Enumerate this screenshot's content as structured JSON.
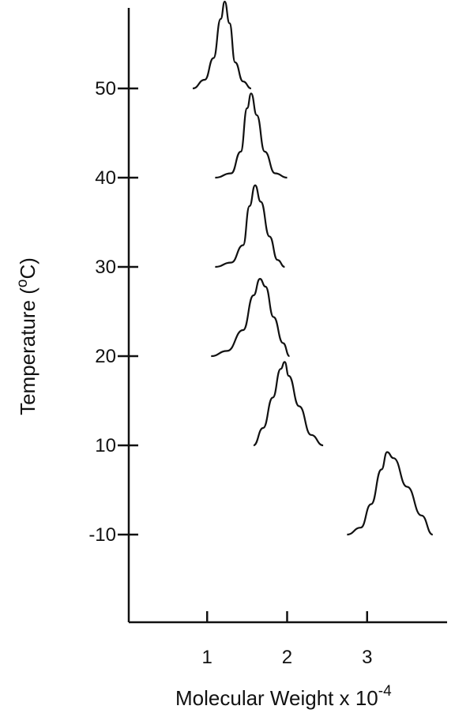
{
  "chart_data": {
    "type": "line",
    "title": "",
    "xlabel_text": "Molecular Weight x 10",
    "xlabel_exponent": "-4",
    "ylabel_pre": "Temperature (",
    "ylabel_sup": "o",
    "ylabel_post": "C)",
    "xlim": [
      0.02,
      4.0
    ],
    "x_ticks": [
      1,
      2,
      3
    ],
    "x_tick_labels": [
      "1",
      "2",
      "3"
    ],
    "y_ticks": [
      50,
      40,
      30,
      20,
      10,
      -10
    ],
    "y_tick_labels": [
      "50",
      "40",
      "30",
      "20",
      "10",
      "-10"
    ],
    "grid": false,
    "legend": "none",
    "series": [
      {
        "temperature": 50,
        "x": [
          0.82,
          0.97,
          1.08,
          1.17,
          1.22,
          1.28,
          1.35,
          1.45,
          1.55
        ],
        "y": [
          0.0,
          0.1,
          0.35,
          0.8,
          1.0,
          0.75,
          0.3,
          0.08,
          0.0
        ]
      },
      {
        "temperature": 40,
        "x": [
          1.1,
          1.3,
          1.42,
          1.5,
          1.55,
          1.62,
          1.72,
          1.85,
          2.0
        ],
        "y": [
          0.0,
          0.05,
          0.3,
          0.8,
          0.97,
          0.72,
          0.3,
          0.05,
          0.0
        ]
      },
      {
        "temperature": 30,
        "x": [
          1.1,
          1.3,
          1.45,
          1.53,
          1.6,
          1.67,
          1.78,
          1.88,
          1.97
        ],
        "y": [
          0.0,
          0.05,
          0.25,
          0.7,
          0.94,
          0.75,
          0.35,
          0.08,
          0.0
        ]
      },
      {
        "temperature": 20,
        "x": [
          1.05,
          1.25,
          1.45,
          1.58,
          1.66,
          1.73,
          1.83,
          1.95,
          2.03
        ],
        "y": [
          0.0,
          0.06,
          0.3,
          0.7,
          0.89,
          0.8,
          0.45,
          0.15,
          0.0
        ]
      },
      {
        "temperature": 10,
        "x": [
          1.58,
          1.7,
          1.82,
          1.92,
          1.97,
          2.02,
          2.15,
          2.3,
          2.45
        ],
        "y": [
          0.0,
          0.2,
          0.55,
          0.88,
          0.96,
          0.8,
          0.45,
          0.12,
          0.0
        ]
      },
      {
        "temperature": -10,
        "x": [
          2.75,
          2.92,
          3.05,
          3.18,
          3.25,
          3.33,
          3.5,
          3.68,
          3.82
        ],
        "y": [
          0.0,
          0.08,
          0.35,
          0.75,
          0.95,
          0.88,
          0.55,
          0.22,
          0.0
        ]
      }
    ],
    "peak_height_note": "y values are relative peak heights above each temperature baseline"
  }
}
